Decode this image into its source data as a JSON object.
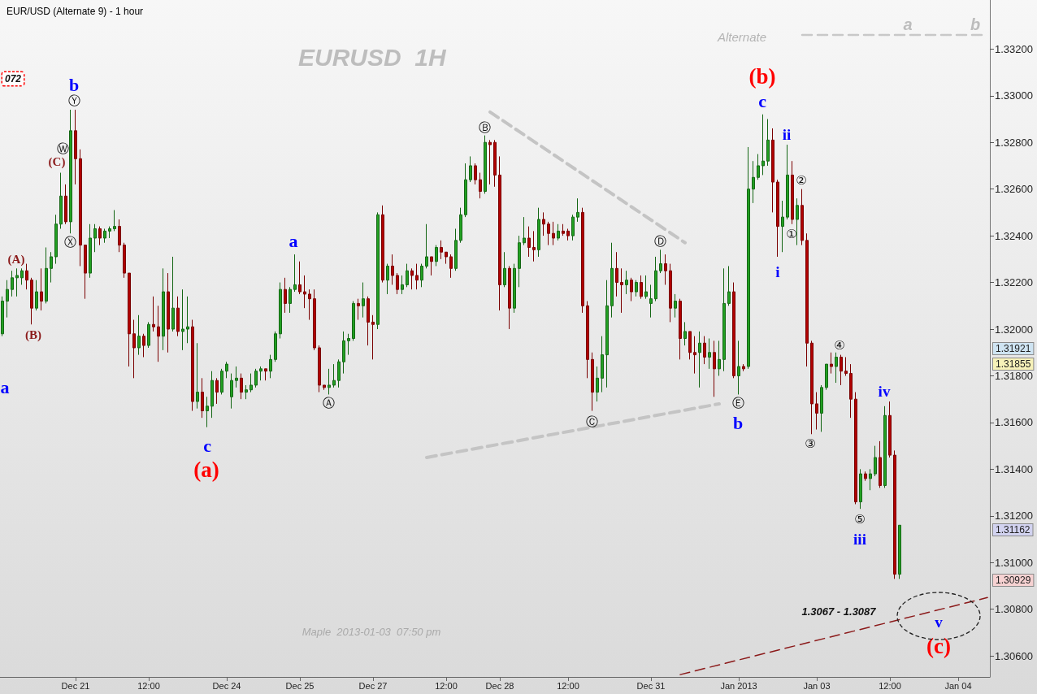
{
  "chart_data": {
    "type": "candlestick",
    "title": "EUR/USD (Alternate 9) - 1 hour",
    "subtitle": "EURUSD  1H",
    "categories": [
      null,
      null,
      null,
      null,
      null,
      null,
      null,
      null,
      null,
      null,
      null,
      null,
      null,
      null,
      null,
      "Dec 21",
      null,
      null,
      null,
      null,
      null,
      null,
      null,
      null,
      null,
      null,
      null,
      null,
      null,
      null,
      "12:00",
      null,
      null,
      null,
      null,
      null,
      null,
      null,
      null,
      null,
      null,
      null,
      null,
      null,
      null,
      null,
      "Dec 24",
      null,
      null,
      null,
      null,
      null,
      null,
      null,
      null,
      null,
      null,
      null,
      null,
      null,
      null,
      "Dec 25",
      null,
      null,
      null,
      null,
      null,
      null,
      null,
      null,
      null,
      null,
      null,
      null,
      null,
      null,
      "Dec 27",
      null,
      null,
      null,
      null,
      null,
      null,
      null,
      null,
      null,
      null,
      null,
      null,
      null,
      null,
      "12:00",
      null,
      null,
      null,
      null,
      null,
      null,
      null,
      null,
      null,
      null,
      "Dec 28",
      null,
      null,
      null,
      null,
      null,
      null,
      null,
      null,
      null,
      null,
      null,
      null,
      null,
      "12:00",
      null,
      null,
      null,
      null,
      null,
      null,
      null,
      null,
      null,
      null,
      null,
      null,
      null,
      null,
      null,
      null,
      "Dec 31",
      null,
      null,
      null,
      null,
      null,
      null,
      null,
      null,
      null,
      null,
      null,
      null,
      null,
      null,
      null,
      null,
      null,
      "Jan 2013",
      null,
      null,
      null,
      null,
      null,
      null,
      null,
      null,
      null,
      null,
      null,
      null,
      null,
      null,
      null,
      "Jan 03",
      null,
      null,
      null,
      null,
      null,
      null,
      null,
      null,
      null,
      null,
      null,
      null,
      null,
      null,
      "12:00",
      null,
      null,
      null,
      null,
      null,
      null,
      null,
      null,
      null,
      null,
      null,
      null,
      null,
      "Jan 04",
      null,
      null,
      null,
      null,
      null,
      null
    ],
    "ohlc": [
      [
        1.3198,
        1.3214,
        1.3197,
        1.3212
      ],
      [
        1.3212,
        1.3221,
        1.3205,
        1.3217
      ],
      [
        1.3217,
        1.3225,
        1.3214,
        1.3222
      ],
      [
        1.3222,
        1.3226,
        1.3214,
        1.3223
      ],
      [
        1.3222,
        1.3226,
        1.3219,
        1.3225
      ],
      [
        1.3225,
        1.3228,
        1.3217,
        1.3221
      ],
      [
        1.3221,
        1.3222,
        1.3202,
        1.3209
      ],
      [
        1.3209,
        1.3221,
        1.3208,
        1.3216
      ],
      [
        1.3216,
        1.3226,
        1.3208,
        1.3212
      ],
      [
        1.3212,
        1.3235,
        1.3211,
        1.3226
      ],
      [
        1.3226,
        1.3233,
        1.322,
        1.3231
      ],
      [
        1.3231,
        1.3249,
        1.3228,
        1.3245
      ],
      [
        1.3245,
        1.3267,
        1.3243,
        1.3257
      ],
      [
        1.3257,
        1.3262,
        1.3245,
        1.3246
      ],
      [
        1.3246,
        1.3294,
        1.3241,
        1.3285
      ],
      [
        1.3285,
        1.3294,
        1.3262,
        1.3273
      ],
      [
        1.3273,
        1.3277,
        1.3227,
        1.3236
      ],
      [
        1.3236,
        1.3236,
        1.3213,
        1.3224
      ],
      [
        1.3224,
        1.3245,
        1.3222,
        1.3239
      ],
      [
        1.3239,
        1.3245,
        1.3233,
        1.3243
      ],
      [
        1.3243,
        1.3244,
        1.3236,
        1.3239
      ],
      [
        1.3239,
        1.3243,
        1.3237,
        1.3242
      ],
      [
        1.3242,
        1.3244,
        1.3239,
        1.3243
      ],
      [
        1.3243,
        1.3251,
        1.3242,
        1.3244
      ],
      [
        1.3244,
        1.3247,
        1.3233,
        1.3236
      ],
      [
        1.3236,
        1.3237,
        1.3222,
        1.3224
      ],
      [
        1.3224,
        1.3224,
        1.3184,
        1.3198
      ],
      [
        1.3198,
        1.3204,
        1.3179,
        1.3192
      ],
      [
        1.3192,
        1.3206,
        1.3189,
        1.3197
      ],
      [
        1.3197,
        1.3198,
        1.3188,
        1.3193
      ],
      [
        1.3193,
        1.3203,
        1.3192,
        1.3202
      ],
      [
        1.3202,
        1.3214,
        1.3199,
        1.3201
      ],
      [
        1.3201,
        1.321,
        1.3186,
        1.3197
      ],
      [
        1.3197,
        1.3226,
        1.3191,
        1.3216
      ],
      [
        1.3216,
        1.3224,
        1.319,
        1.32
      ],
      [
        1.32,
        1.3231,
        1.3199,
        1.3209
      ],
      [
        1.3209,
        1.3214,
        1.3197,
        1.3199
      ],
      [
        1.3199,
        1.3217,
        1.3191,
        1.32
      ],
      [
        1.32,
        1.3214,
        1.3194,
        1.3201
      ],
      [
        1.3201,
        1.3204,
        1.3165,
        1.3169
      ],
      [
        1.3169,
        1.3194,
        1.3166,
        1.3173
      ],
      [
        1.3173,
        1.3179,
        1.3162,
        1.3165
      ],
      [
        1.3165,
        1.3171,
        1.3158,
        1.3167
      ],
      [
        1.3167,
        1.3182,
        1.3162,
        1.3178
      ],
      [
        1.3178,
        1.3179,
        1.3168,
        1.3173
      ],
      [
        1.3173,
        1.3183,
        1.3172,
        1.3182
      ],
      [
        1.3182,
        1.3186,
        1.3179,
        1.3185
      ],
      [
        1.3171,
        1.3181,
        1.3166,
        1.3178
      ],
      [
        1.3178,
        1.3184,
        1.3175,
        1.3179
      ],
      [
        1.3179,
        1.3181,
        1.317,
        1.3173
      ],
      [
        1.3173,
        1.3176,
        1.317,
        1.3174
      ],
      [
        1.3174,
        1.3181,
        1.3173,
        1.3176
      ],
      [
        1.3176,
        1.3183,
        1.3175,
        1.3182
      ],
      [
        1.3182,
        1.3184,
        1.3178,
        1.3183
      ],
      [
        1.3183,
        1.3183,
        1.3178,
        1.3182
      ],
      [
        1.3182,
        1.3189,
        1.3179,
        1.3187
      ],
      [
        1.3187,
        1.3199,
        1.3186,
        1.3198
      ],
      [
        1.3198,
        1.322,
        1.3196,
        1.3217
      ],
      [
        1.3217,
        1.3222,
        1.3207,
        1.3211
      ],
      [
        1.3211,
        1.3218,
        1.3207,
        1.3217
      ],
      [
        1.3217,
        1.3232,
        1.3216,
        1.3219
      ],
      [
        1.3219,
        1.3229,
        1.3215,
        1.3216
      ],
      [
        1.3216,
        1.3223,
        1.3209,
        1.3215
      ],
      [
        1.3215,
        1.3217,
        1.3204,
        1.3213
      ],
      [
        1.3213,
        1.3217,
        1.3191,
        1.3192
      ],
      [
        1.3192,
        1.3193,
        1.3173,
        1.3176
      ],
      [
        1.3176,
        1.3176,
        1.3174,
        1.3175
      ],
      [
        1.3175,
        1.3183,
        1.3172,
        1.3176
      ],
      [
        1.3176,
        1.3185,
        1.3175,
        1.3178
      ],
      [
        1.3178,
        1.3187,
        1.3175,
        1.3186
      ],
      [
        1.3186,
        1.3199,
        1.3181,
        1.3195
      ],
      [
        1.3195,
        1.3198,
        1.3189,
        1.3196
      ],
      [
        1.3196,
        1.3212,
        1.3195,
        1.3211
      ],
      [
        1.3211,
        1.3213,
        1.3204,
        1.321
      ],
      [
        1.321,
        1.322,
        1.3205,
        1.3213
      ],
      [
        1.3213,
        1.3214,
        1.3193,
        1.3203
      ],
      [
        1.3203,
        1.3206,
        1.3187,
        1.3202
      ],
      [
        1.3202,
        1.325,
        1.32,
        1.3249
      ],
      [
        1.3249,
        1.3253,
        1.322,
        1.3221
      ],
      [
        1.3221,
        1.3228,
        1.3215,
        1.3227
      ],
      [
        1.3227,
        1.3232,
        1.3219,
        1.3223
      ],
      [
        1.3223,
        1.3224,
        1.3215,
        1.3217
      ],
      [
        1.3217,
        1.3223,
        1.3215,
        1.3219
      ],
      [
        1.3219,
        1.3228,
        1.3218,
        1.3225
      ],
      [
        1.3225,
        1.3226,
        1.3217,
        1.3223
      ],
      [
        1.3223,
        1.3228,
        1.3217,
        1.3221
      ],
      [
        1.3221,
        1.3228,
        1.3218,
        1.3227
      ],
      [
        1.3227,
        1.3245,
        1.3226,
        1.3231
      ],
      [
        1.3231,
        1.3231,
        1.3223,
        1.3229
      ],
      [
        1.3229,
        1.3236,
        1.3227,
        1.3235
      ],
      [
        1.3235,
        1.3238,
        1.323,
        1.3233
      ],
      [
        1.3233,
        1.3233,
        1.3228,
        1.3231
      ],
      [
        1.3231,
        1.3232,
        1.3222,
        1.3226
      ],
      [
        1.3226,
        1.3243,
        1.3225,
        1.3238
      ],
      [
        1.3238,
        1.3252,
        1.3237,
        1.3249
      ],
      [
        1.3249,
        1.3271,
        1.3248,
        1.3264
      ],
      [
        1.3264,
        1.3274,
        1.3263,
        1.327
      ],
      [
        1.327,
        1.3271,
        1.3262,
        1.3264
      ],
      [
        1.3264,
        1.3267,
        1.3256,
        1.3259
      ],
      [
        1.3259,
        1.3283,
        1.3258,
        1.328
      ],
      [
        1.328,
        1.3281,
        1.3262,
        1.3279
      ],
      [
        1.328,
        1.3281,
        1.3261,
        1.3266
      ],
      [
        1.3266,
        1.3274,
        1.3208,
        1.3219
      ],
      [
        1.3219,
        1.3233,
        1.3218,
        1.3226
      ],
      [
        1.3226,
        1.3227,
        1.32,
        1.3209
      ],
      [
        1.3209,
        1.3228,
        1.3207,
        1.3226
      ],
      [
        1.3226,
        1.324,
        1.3218,
        1.3237
      ],
      [
        1.3237,
        1.3248,
        1.3236,
        1.3239
      ],
      [
        1.3239,
        1.3244,
        1.3231,
        1.3235
      ],
      [
        1.3235,
        1.3242,
        1.3229,
        1.3234
      ],
      [
        1.3234,
        1.3252,
        1.3231,
        1.3247
      ],
      [
        1.3247,
        1.325,
        1.324,
        1.3245
      ],
      [
        1.3245,
        1.3246,
        1.3236,
        1.3241
      ],
      [
        1.3241,
        1.3246,
        1.3236,
        1.3239
      ],
      [
        1.3239,
        1.3245,
        1.3238,
        1.3242
      ],
      [
        1.3242,
        1.3245,
        1.324,
        1.3241
      ],
      [
        1.3242,
        1.3243,
        1.3238,
        1.324
      ],
      [
        1.324,
        1.3249,
        1.3238,
        1.3248
      ],
      [
        1.3248,
        1.3256,
        1.3246,
        1.325
      ],
      [
        1.325,
        1.3252,
        1.3207,
        1.321
      ],
      [
        1.321,
        1.3212,
        1.3179,
        1.3187
      ],
      [
        1.3187,
        1.319,
        1.3165,
        1.3173
      ],
      [
        1.3173,
        1.3184,
        1.3169,
        1.3179
      ],
      [
        1.3179,
        1.3197,
        1.3173,
        1.3189
      ],
      [
        1.3189,
        1.3221,
        1.3175,
        1.321
      ],
      [
        1.321,
        1.3237,
        1.3205,
        1.3226
      ],
      [
        1.3226,
        1.3233,
        1.3214,
        1.322
      ],
      [
        1.322,
        1.3226,
        1.3207,
        1.3219
      ],
      [
        1.3219,
        1.3225,
        1.3215,
        1.3221
      ],
      [
        1.3221,
        1.3222,
        1.3212,
        1.3216
      ],
      [
        1.3216,
        1.3221,
        1.3214,
        1.322
      ],
      [
        1.322,
        1.3223,
        1.3213,
        1.3214
      ],
      [
        1.3214,
        1.3223,
        1.3213,
        1.3216
      ],
      [
        1.3211,
        1.3219,
        1.3205,
        1.3213
      ],
      [
        1.3213,
        1.3231,
        1.3212,
        1.3225
      ],
      [
        1.3225,
        1.3234,
        1.3224,
        1.3228
      ],
      [
        1.3228,
        1.3232,
        1.3219,
        1.3225
      ],
      [
        1.3225,
        1.3228,
        1.3203,
        1.3209
      ],
      [
        1.3209,
        1.3215,
        1.3205,
        1.3212
      ],
      [
        1.3212,
        1.3213,
        1.3187,
        1.3196
      ],
      [
        1.3196,
        1.3203,
        1.3193,
        1.3199
      ],
      [
        1.3199,
        1.3199,
        1.3187,
        1.319
      ],
      [
        1.319,
        1.3197,
        1.3181,
        1.3189
      ],
      [
        1.319,
        1.3199,
        1.3175,
        1.3194
      ],
      [
        1.3194,
        1.3197,
        1.3185,
        1.3188
      ],
      [
        1.3188,
        1.3196,
        1.3183,
        1.319
      ],
      [
        1.319,
        1.3195,
        1.3171,
        1.3183
      ],
      [
        1.3183,
        1.3195,
        1.318,
        1.3187
      ],
      [
        1.3187,
        1.3226,
        1.3182,
        1.3211
      ],
      [
        1.3211,
        1.3227,
        1.321,
        1.3216
      ],
      [
        1.3216,
        1.322,
        1.3179,
        1.318
      ],
      [
        1.318,
        1.3195,
        1.3172,
        1.3184
      ],
      [
        1.3184,
        1.3185,
        1.3182,
        1.3183
      ],
      [
        1.3184,
        1.3278,
        1.3183,
        1.326
      ],
      [
        1.326,
        1.3272,
        1.3254,
        1.3265
      ],
      [
        1.3265,
        1.3275,
        1.3264,
        1.327
      ],
      [
        1.327,
        1.3292,
        1.3266,
        1.3272
      ],
      [
        1.3272,
        1.329,
        1.327,
        1.3281
      ],
      [
        1.3281,
        1.3286,
        1.325,
        1.3263
      ],
      [
        1.3263,
        1.3264,
        1.3231,
        1.3244
      ],
      [
        1.3244,
        1.3255,
        1.3233,
        1.3248
      ],
      [
        1.3248,
        1.3279,
        1.3247,
        1.3266
      ],
      [
        1.3266,
        1.3272,
        1.3245,
        1.3247
      ],
      [
        1.3247,
        1.3256,
        1.3236,
        1.3253
      ],
      [
        1.3253,
        1.326,
        1.3236,
        1.3238
      ],
      [
        1.3238,
        1.3241,
        1.3184,
        1.3194
      ],
      [
        1.3194,
        1.3195,
        1.3155,
        1.3168
      ],
      [
        1.3168,
        1.3173,
        1.3157,
        1.3164
      ],
      [
        1.3164,
        1.3176,
        1.3156,
        1.3175
      ],
      [
        1.3175,
        1.3185,
        1.3174,
        1.3185
      ],
      [
        1.3185,
        1.319,
        1.3181,
        1.3184
      ],
      [
        1.3184,
        1.319,
        1.3177,
        1.3188
      ],
      [
        1.3188,
        1.3189,
        1.3176,
        1.3182
      ],
      [
        1.3182,
        1.3188,
        1.318,
        1.3181
      ],
      [
        1.3181,
        1.3185,
        1.3162,
        1.317
      ],
      [
        1.317,
        1.3173,
        1.3125,
        1.3126
      ],
      [
        1.3126,
        1.314,
        1.3123,
        1.3138
      ],
      [
        1.3138,
        1.3139,
        1.3135,
        1.3136
      ],
      [
        1.3136,
        1.314,
        1.3131,
        1.3138
      ],
      [
        1.3138,
        1.315,
        1.3137,
        1.3145
      ],
      [
        1.3145,
        1.3152,
        1.3132,
        1.3133
      ],
      [
        1.3133,
        1.3167,
        1.3132,
        1.3163
      ],
      [
        1.3163,
        1.3169,
        1.3145,
        1.3146
      ],
      [
        1.3146,
        1.3148,
        1.3093,
        1.3095
      ],
      [
        1.3095,
        1.3116,
        1.3093,
        1.3116
      ],
      null,
      null,
      null,
      null,
      null,
      null,
      null,
      null,
      null,
      null,
      null,
      null,
      null,
      null,
      null,
      null,
      null,
      null
    ],
    "series": [
      {
        "type": "line",
        "color": "#c4c4c4",
        "line_style": "dashed",
        "values": [
          null,
          null,
          null,
          null,
          null,
          null,
          null,
          null,
          null,
          null,
          null,
          null,
          null,
          null,
          null,
          null,
          null,
          null,
          null,
          null,
          null,
          null,
          null,
          null,
          null,
          null,
          null,
          null,
          null,
          null,
          null,
          null,
          null,
          null,
          null,
          null,
          null,
          null,
          null,
          null,
          null,
          null,
          null,
          null,
          null,
          null,
          null,
          null,
          null,
          null,
          null,
          null,
          null,
          null,
          null,
          null,
          null,
          null,
          null,
          null,
          null,
          null,
          null,
          null,
          null,
          null,
          null,
          null,
          null,
          null,
          null,
          null,
          null,
          null,
          null,
          null,
          null,
          null,
          null,
          null,
          null,
          null,
          null,
          null,
          null,
          null,
          null,
          null,
          null,
          null,
          null,
          null,
          null,
          null,
          null,
          null,
          null,
          null,
          null,
          null,
          1.3293,
          null,
          null,
          null,
          null,
          null,
          null,
          null,
          null,
          null,
          null,
          null,
          null,
          null,
          null,
          null,
          null,
          null,
          null,
          null,
          null,
          null,
          null,
          null,
          null,
          null,
          null,
          null,
          null,
          null,
          null,
          null,
          null,
          null,
          null,
          null,
          null,
          null,
          null,
          null,
          1.3237,
          null,
          null,
          null,
          null,
          null,
          null,
          null,
          null,
          null,
          null,
          null,
          null,
          null,
          null,
          null,
          null,
          null,
          null,
          null,
          null,
          null,
          null,
          null,
          null,
          null,
          null,
          null,
          null,
          null,
          null,
          null,
          null,
          null,
          null,
          null,
          null,
          null,
          null,
          null,
          null,
          null,
          null,
          null,
          null,
          null,
          null,
          null,
          null,
          null,
          null,
          null,
          null,
          null,
          null,
          null,
          null,
          null,
          null,
          null,
          null,
          null,
          null
        ]
      },
      {
        "type": "line",
        "color": "#c4c4c4",
        "line_style": "dashed",
        "values": [
          null,
          null,
          null,
          null,
          null,
          null,
          null,
          null,
          null,
          null,
          null,
          null,
          null,
          null,
          null,
          null,
          null,
          null,
          null,
          null,
          null,
          null,
          null,
          null,
          null,
          null,
          null,
          null,
          null,
          null,
          null,
          null,
          null,
          null,
          null,
          null,
          null,
          null,
          null,
          null,
          null,
          null,
          null,
          null,
          null,
          null,
          null,
          null,
          null,
          null,
          null,
          null,
          null,
          null,
          null,
          null,
          null,
          null,
          null,
          null,
          null,
          null,
          null,
          null,
          null,
          null,
          null,
          null,
          null,
          null,
          null,
          null,
          null,
          null,
          null,
          null,
          null,
          null,
          null,
          null,
          null,
          null,
          null,
          null,
          null,
          null,
          null,
          1.3145,
          null,
          null,
          null,
          null,
          null,
          null,
          null,
          null,
          null,
          null,
          null,
          null,
          null,
          null,
          null,
          null,
          null,
          null,
          null,
          null,
          null,
          null,
          null,
          null,
          null,
          null,
          null,
          null,
          null,
          null,
          null,
          null,
          null,
          null,
          null,
          null,
          null,
          null,
          null,
          null,
          null,
          null,
          null,
          null,
          null,
          null,
          null,
          null,
          null,
          null,
          null,
          null,
          null,
          null,
          null,
          null,
          null,
          null,
          null,
          1.3168,
          null,
          null,
          null,
          null,
          null,
          null,
          null,
          null,
          null,
          null,
          null,
          null,
          null,
          null,
          null,
          null,
          null,
          null,
          null,
          null,
          null,
          null,
          null,
          null,
          null,
          null,
          null,
          null,
          null,
          null,
          null,
          null,
          null,
          null,
          null,
          null,
          null,
          null,
          null,
          null,
          null,
          null,
          null,
          null,
          null,
          null,
          null,
          null,
          null,
          null,
          null,
          null,
          null,
          null,
          null
        ]
      },
      {
        "type": "line",
        "color": "#c8c8c8",
        "line_style": "dashed",
        "values": [
          null,
          null,
          null,
          null,
          null,
          null,
          null,
          null,
          null,
          null,
          null,
          null,
          null,
          null,
          null,
          null,
          null,
          null,
          null,
          null,
          null,
          null,
          null,
          null,
          null,
          null,
          null,
          null,
          null,
          null,
          null,
          null,
          null,
          null,
          null,
          null,
          null,
          null,
          null,
          null,
          null,
          null,
          null,
          null,
          null,
          null,
          null,
          null,
          null,
          null,
          null,
          null,
          null,
          null,
          null,
          null,
          null,
          null,
          null,
          null,
          null,
          null,
          null,
          null,
          null,
          null,
          null,
          null,
          null,
          null,
          null,
          null,
          null,
          null,
          null,
          null,
          null,
          null,
          null,
          null,
          null,
          null,
          null,
          null,
          null,
          null,
          null,
          null,
          null,
          null,
          null,
          null,
          null,
          null,
          null,
          null,
          null,
          null,
          null,
          null,
          null,
          null,
          null,
          null,
          null,
          null,
          null,
          null,
          null,
          null,
          null,
          null,
          null,
          null,
          null,
          null,
          null,
          null,
          null,
          null,
          null,
          null,
          null,
          null,
          null,
          null,
          null,
          null,
          null,
          null,
          null,
          null,
          null,
          null,
          null,
          null,
          null,
          null,
          null,
          null,
          null,
          null,
          null,
          null,
          null,
          null,
          null,
          null,
          null,
          null,
          null,
          null,
          null,
          null,
          null,
          null,
          null,
          null,
          null,
          null,
          null,
          null,
          null,
          null,
          1.3326,
          null,
          null,
          null,
          null,
          null,
          null,
          null,
          null,
          null,
          null,
          null,
          null,
          null,
          null,
          null,
          null,
          null,
          null,
          null,
          null,
          null,
          null,
          null,
          null,
          null,
          null,
          null,
          null,
          null,
          null,
          null,
          null,
          null,
          null,
          null,
          null,
          null,
          1.3326
        ]
      },
      {
        "type": "line",
        "color": "#8b1a1a",
        "line_style": "dashed",
        "values": [
          null,
          null,
          null,
          null,
          null,
          null,
          null,
          null,
          null,
          null,
          null,
          null,
          null,
          null,
          null,
          null,
          null,
          null,
          null,
          null,
          null,
          null,
          null,
          null,
          null,
          null,
          null,
          null,
          null,
          null,
          null,
          null,
          null,
          null,
          null,
          null,
          null,
          null,
          null,
          null,
          null,
          null,
          null,
          null,
          null,
          null,
          null,
          null,
          null,
          null,
          null,
          null,
          null,
          null,
          null,
          null,
          null,
          null,
          null,
          null,
          null,
          null,
          null,
          null,
          null,
          null,
          null,
          null,
          null,
          null,
          null,
          null,
          null,
          null,
          null,
          null,
          null,
          null,
          null,
          null,
          null,
          null,
          null,
          null,
          null,
          null,
          null,
          null,
          null,
          null,
          null,
          null,
          null,
          null,
          null,
          null,
          null,
          null,
          null,
          null,
          null,
          null,
          null,
          null,
          null,
          null,
          null,
          null,
          null,
          null,
          null,
          null,
          null,
          null,
          null,
          null,
          null,
          null,
          null,
          null,
          null,
          null,
          null,
          null,
          null,
          null,
          null,
          null,
          null,
          null,
          null,
          null,
          null,
          null,
          null,
          null,
          null,
          null,
          null,
          1.3052,
          null,
          null,
          null,
          null,
          null,
          null,
          null,
          null,
          null,
          null,
          null,
          null,
          null,
          null,
          null,
          null,
          null,
          null,
          null,
          null,
          null,
          null,
          null,
          null,
          null,
          null,
          null,
          null,
          null,
          null,
          null,
          null,
          null,
          null,
          null,
          null,
          null,
          null,
          null,
          null,
          null,
          null,
          null,
          null,
          null,
          null,
          null,
          null,
          null,
          null,
          null,
          null,
          null,
          null,
          null,
          null,
          null,
          null,
          null,
          null,
          null,
          null,
          1.3085
        ]
      }
    ],
    "ylim": [
      1.3051,
      1.3341
    ],
    "yticks": [
      {
        "value": 1.306,
        "label": "1.30600"
      },
      {
        "value": 1.308,
        "label": "1.30800"
      },
      {
        "value": 1.31,
        "label": "1.31000"
      },
      {
        "value": 1.312,
        "label": "1.31200"
      },
      {
        "value": 1.314,
        "label": "1.31400"
      },
      {
        "value": 1.316,
        "label": "1.31600"
      },
      {
        "value": 1.318,
        "label": "1.31800"
      },
      {
        "value": 1.32,
        "label": "1.32000"
      },
      {
        "value": 1.322,
        "label": "1.32200"
      },
      {
        "value": 1.324,
        "label": "1.32400"
      },
      {
        "value": 1.326,
        "label": "1.32600"
      },
      {
        "value": 1.328,
        "label": "1.32800"
      },
      {
        "value": 1.33,
        "label": "1.33000"
      },
      {
        "value": 1.332,
        "label": "1.33200"
      }
    ],
    "annotations": [
      "b",
      "Ⓨ",
      "Ⓦ",
      "(C)",
      "Ⓧ",
      "(A)",
      "(B)",
      "a",
      "c",
      "(a)",
      "a",
      "Ⓐ",
      "Ⓑ",
      "Ⓒ",
      "Ⓓ",
      "Ⓔ",
      "b",
      "(b)",
      "c",
      "ii",
      "②",
      "①",
      "i",
      "③",
      "④",
      "iv",
      "⑤",
      "iii",
      "v",
      "(c)",
      "Alternate",
      "a",
      "b",
      "1.3067 - 1.3087",
      "Maple  2013-01-03  07:50 pm",
      "072",
      "1.31921",
      "1.31855",
      "1.31162",
      "1.30929"
    ]
  }
}
